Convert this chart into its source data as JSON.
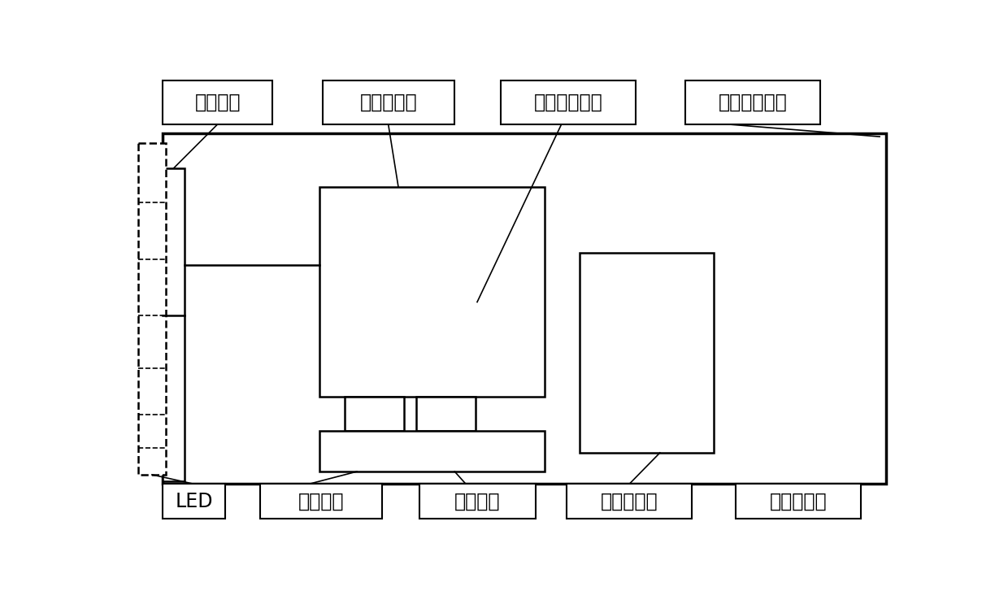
{
  "bg_color": "#ffffff",
  "lc": "#000000",
  "lw_thick": 2.5,
  "lw_mid": 1.8,
  "lw_thin": 1.2,
  "fs_label": 17,
  "labels_top": {
    "jing_tou": "镜头通孔",
    "ying_guang": "荧光滤光片",
    "ji_cheng": "集成相机组件",
    "gao_gan": "高感光度相机"
  },
  "labels_bottom": {
    "led": "LED",
    "guang_yuan": "光源组件",
    "ke_tiao": "可调镜头",
    "xiang_ji_gu": "相机固定器",
    "guang_yuan_kz": "光源控制器"
  }
}
